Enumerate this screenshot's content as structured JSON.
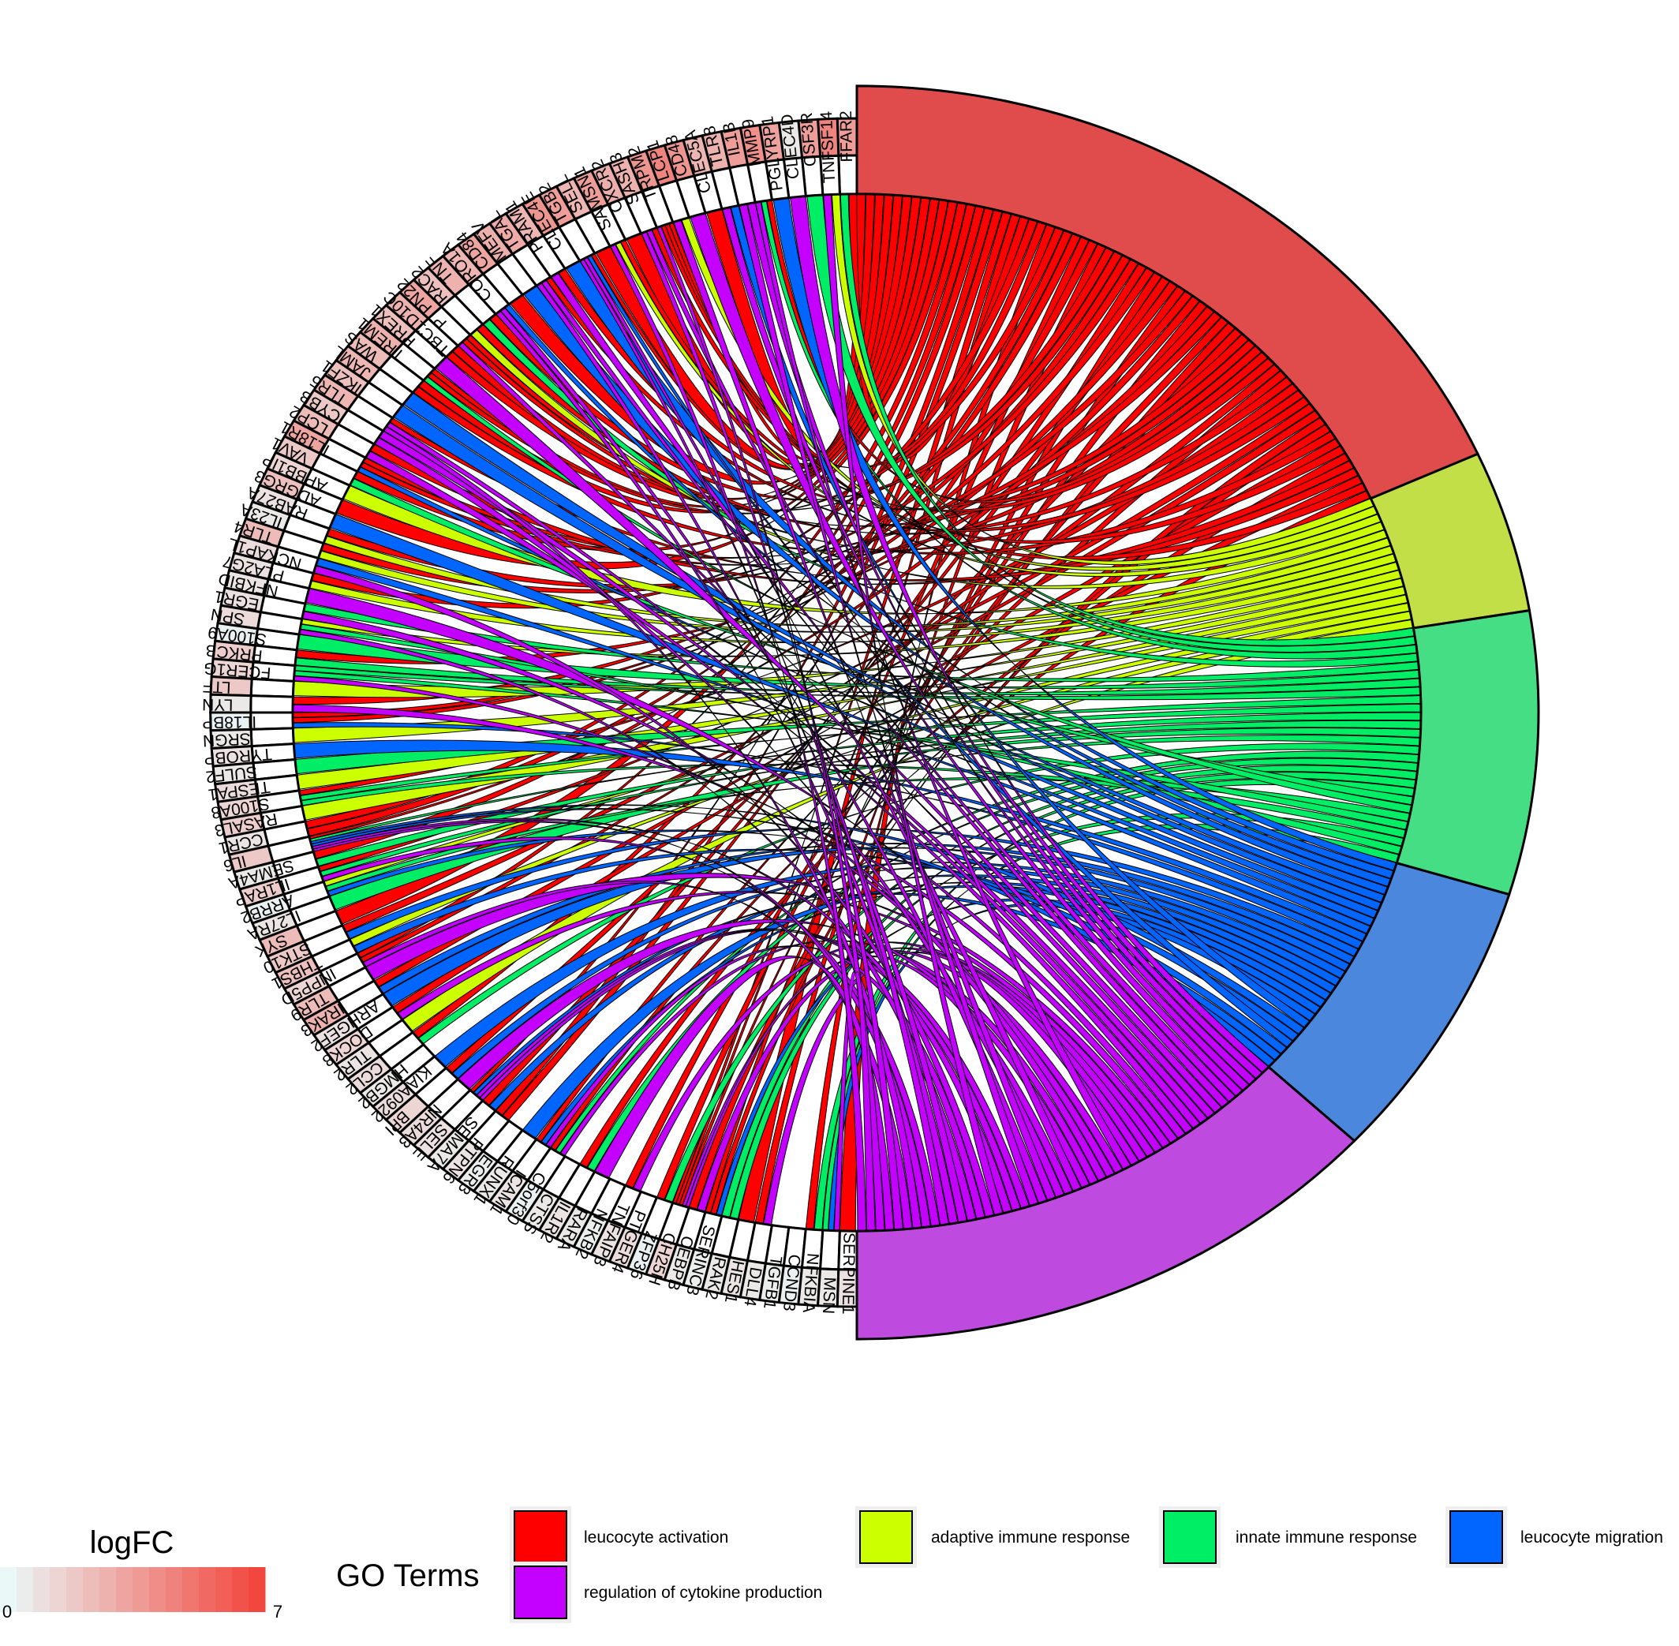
{
  "genes": [
    "FFAR2",
    "TNFSF14",
    "CSF3R",
    "CLEC4D",
    "PGLYRP1",
    "MMP9",
    "IL1B",
    "TLR8",
    "CLEC5A",
    "CD48",
    "LCP1",
    "TRPM2",
    "SASH3",
    "CXCR2",
    "SAMSN1",
    "SELL",
    "ITGB2",
    "CLEC4E",
    "PRAM1",
    "ITGAL",
    "MEFV",
    "CD84",
    "CORO1A",
    "TNF",
    "RAC2",
    "PTPN22",
    "TBC1D10C",
    "PREX1",
    "TREM1",
    "WAS",
    "JAML",
    "IKZF1",
    "TLR5",
    "CYBB",
    "LCP2",
    "IL18R1",
    "VAV1",
    "APBB1IP",
    "ADGRG3",
    "RAB27A",
    "IL23A",
    "TLR4",
    "NCKAP1L",
    "PLA2G7",
    "NFKBID",
    "EGR1",
    "SPN",
    "S100A9",
    "PRKCB",
    "FCER1G",
    "LTF",
    "LYN",
    "IL18BP",
    "SRGN",
    "TYROBP",
    "SULF2",
    "TESPA1",
    "S100A8",
    "RASAL3",
    "CCR1",
    "IL6",
    "SEMA4A",
    "IL1RAP",
    "ARRB2",
    "IL27RA",
    "SYK",
    "STK10",
    "THBS1",
    "INPP5D",
    "TLR9",
    "IRAK3",
    "ARHGEF2",
    "DOCK8",
    "TLR2",
    "CCL2",
    "HMGB2",
    "KIAA0922",
    "BPI",
    "NR4A3",
    "SELE",
    "SEMA7A",
    "PTPN6",
    "EGR3",
    "RUNX1",
    "ICAM1",
    "C5orf30",
    "CTSS",
    "IL1R2",
    "RARA",
    "NFKB2",
    "TNFAIP3",
    "PTGER4",
    "ZFP36",
    "CH25H",
    "CEBPB",
    "SERINC3",
    "IRAK2",
    "HES1",
    "DLL4",
    "TGFB1",
    "CCND3",
    "NFKBIA",
    "MSN",
    "SERPINE1"
  ],
  "logfc": [
    3.6,
    4.6,
    3.6,
    0.6,
    3.4,
    4.1,
    3.6,
    2.8,
    2.6,
    3.9,
    4.6,
    3.9,
    2.8,
    2.9,
    3.6,
    2.6,
    3.6,
    3.9,
    2.6,
    3.1,
    2.9,
    3.3,
    2.6,
    2.8,
    2.2,
    3.3,
    2.8,
    2.2,
    2.8,
    2.4,
    2.6,
    2.2,
    2.6,
    1.9,
    2.4,
    3.3,
    1.9,
    1.4,
    2.2,
    0.9,
    0.6,
    2.4,
    1.1,
    0.9,
    0.8,
    0.9,
    1.1,
    0.3,
    1.7,
    1.4,
    1.9,
    0.6,
    0.2,
    0.6,
    0.9,
    0.6,
    1.1,
    1.4,
    1.7,
    0.8,
    1.9,
    0.6,
    1.7,
    0.3,
    0.8,
    2.4,
    1.9,
    2.2,
    1.4,
    2.4,
    2.8,
    0.9,
    1.4,
    0.8,
    1.1,
    0.6,
    1.1,
    1.4,
    1.1,
    0.9,
    0.6,
    0.8,
    0.4,
    0.6,
    0.8,
    0.3,
    0.6,
    0.8,
    0.6,
    0.4,
    0.8,
    1.1,
    0.3,
    1.4,
    0.6,
    0.4,
    0.6,
    0.8,
    0.6,
    0.4,
    0.3,
    0.6,
    0.6,
    0.9
  ],
  "terms": [
    {
      "name": "leucocyte activation",
      "color": "#ff0000",
      "outer_color": "#e04b4b",
      "member_count": 70
    },
    {
      "name": "adaptive immune response",
      "color": "#ccff00",
      "outer_color": "#c3df48",
      "member_count": 16
    },
    {
      "name": "innate immune response",
      "color": "#00ee66",
      "outer_color": "#45de84",
      "member_count": 28
    },
    {
      "name": "leucocyte migration",
      "color": "#0066ff",
      "outer_color": "#4a87dd",
      "member_count": 28
    },
    {
      "name": "regulation of cytokine production",
      "color": "#c400ff",
      "outer_color": "#be4ae0",
      "member_count": 50
    }
  ],
  "legend": {
    "logfc_title": "logFC",
    "logfc_min": "0",
    "logfc_max": "7",
    "go_title": "GO Terms"
  },
  "colors": {
    "logfc_low": "#eaf8f8",
    "logfc_high": "#f2473e",
    "outline": "#000000"
  }
}
